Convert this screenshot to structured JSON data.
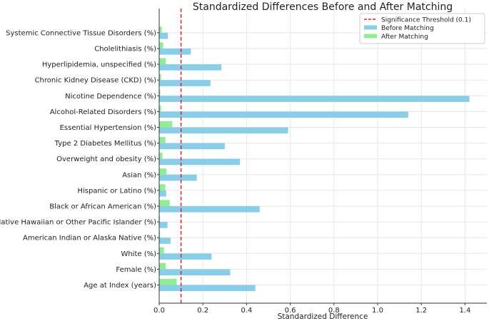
{
  "chart_data": {
    "type": "bar",
    "orientation": "horizontal",
    "title": "Standardized Differences Before and After Matching",
    "xlabel": "Standardized Difference",
    "ylabel": "",
    "xlim": [
      0,
      1.5
    ],
    "xticks": [
      "0.0",
      "0.2",
      "0.4",
      "0.6",
      "0.8",
      "1.0",
      "1.2",
      "1.4"
    ],
    "grid": true,
    "legend_position": "top-right",
    "categories": [
      "Age at Index (years)",
      "Female (%)",
      "White (%)",
      "American Indian or Alaska Native (%)",
      "Native Hawaiian or Other Pacific Islander (%)",
      "Black or African American (%)",
      "Hispanic or Latino (%)",
      "Asian (%)",
      "Overweight and obesity (%)",
      "Type 2 Diabetes Mellitus (%)",
      "Essential Hypertension (%)",
      "Alcohol-Related Disorders (%)",
      "Nicotine Dependence (%)",
      "Chronic Kidney Disease (CKD) (%)",
      "Hyperlipidemia, unspecified (%)",
      "Cholelithiasis (%)",
      "Systemic Connective Tissue Disorders (%)"
    ],
    "series": [
      {
        "name": "Before Matching",
        "color": "#87ceeb",
        "values": [
          0.44,
          0.325,
          0.24,
          0.052,
          0.038,
          0.46,
          0.032,
          0.172,
          0.37,
          0.3,
          0.59,
          1.14,
          1.42,
          0.235,
          0.285,
          0.145,
          0.04
        ]
      },
      {
        "name": "After Matching",
        "color": "#90ee90",
        "values": [
          0.08,
          0.03,
          0.022,
          0.004,
          0.004,
          0.048,
          0.028,
          0.033,
          0.015,
          0.028,
          0.06,
          0.008,
          0.005,
          0.008,
          0.03,
          0.018,
          0.012
        ]
      }
    ],
    "threshold": {
      "name": "Significance Threshold (0.1)",
      "value": 0.1,
      "color": "#d62728"
    }
  }
}
